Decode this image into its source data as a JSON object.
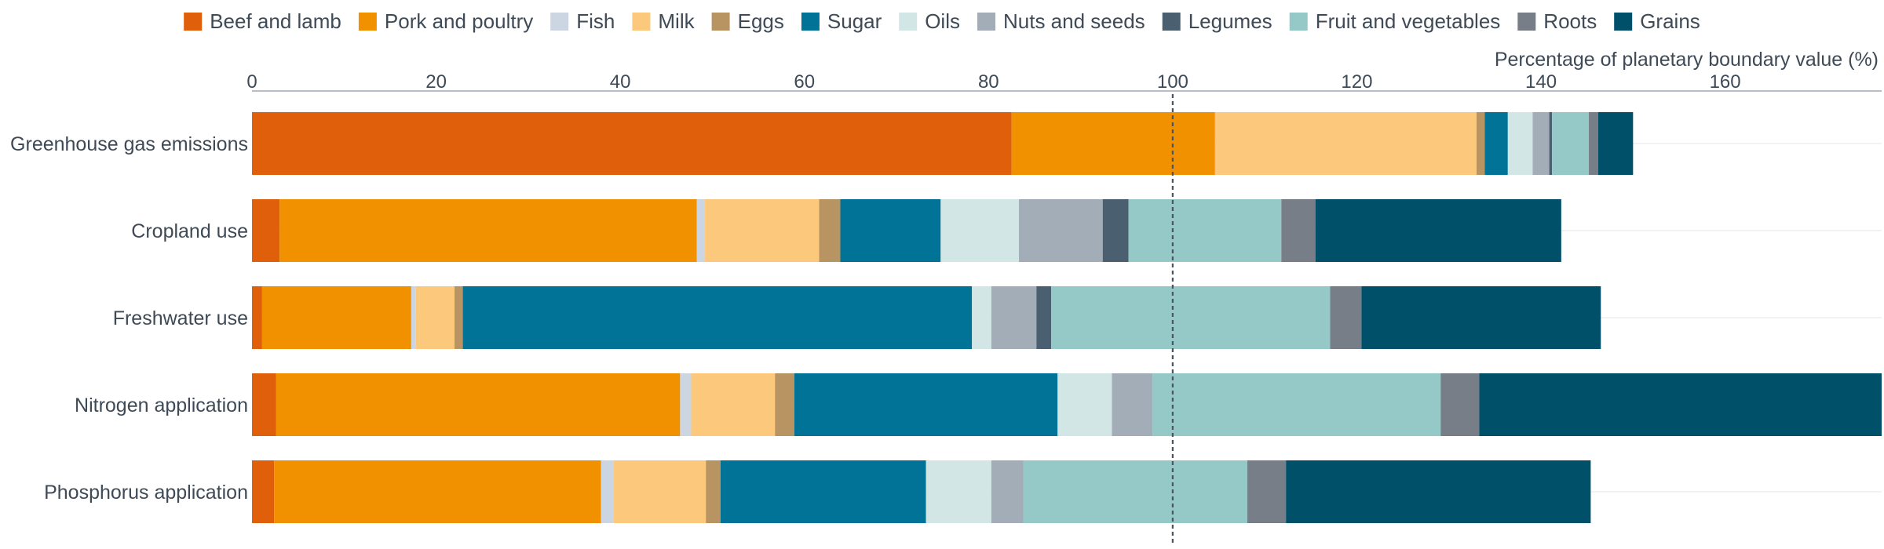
{
  "chart_data": {
    "type": "bar",
    "orientation": "horizontal",
    "stacked": true,
    "xlabel": "Percentage of planetary boundary value (%)",
    "xlim": [
      0,
      177
    ],
    "xticks": [
      0,
      20,
      40,
      60,
      80,
      100,
      120,
      140,
      160
    ],
    "reference_line": 100,
    "legend_position": "top",
    "categories": [
      "Greenhouse gas emissions",
      "Cropland use",
      "Freshwater use",
      "Nitrogen application",
      "Phosphorus application"
    ],
    "series": [
      {
        "name": "Beef and lamb",
        "color": "#df5f0a",
        "values": [
          82.5,
          3.0,
          1.1,
          2.6,
          2.4
        ]
      },
      {
        "name": "Pork and poultry",
        "color": "#f29100",
        "values": [
          22.1,
          45.3,
          16.2,
          43.9,
          35.5
        ]
      },
      {
        "name": "Fish",
        "color": "#cbd6e2",
        "values": [
          0.0,
          0.9,
          0.5,
          1.2,
          1.4
        ]
      },
      {
        "name": "Milk",
        "color": "#fbc87c",
        "values": [
          28.4,
          12.4,
          4.2,
          9.1,
          10.0
        ]
      },
      {
        "name": "Eggs",
        "color": "#b89463",
        "values": [
          0.9,
          2.3,
          0.9,
          2.1,
          1.6
        ]
      },
      {
        "name": "Sugar",
        "color": "#017397",
        "values": [
          2.5,
          10.9,
          55.3,
          28.6,
          22.3
        ]
      },
      {
        "name": "Oils",
        "color": "#d2e6e5",
        "values": [
          2.7,
          8.5,
          2.1,
          5.9,
          7.1
        ]
      },
      {
        "name": "Nuts and seeds",
        "color": "#a3adb8",
        "values": [
          1.8,
          9.1,
          4.9,
          4.4,
          3.5
        ]
      },
      {
        "name": "Legumes",
        "color": "#4a5f70",
        "values": [
          0.3,
          2.8,
          1.6,
          0.0,
          0.0
        ]
      },
      {
        "name": "Fruit and vegetables",
        "color": "#95c9c8",
        "values": [
          4.0,
          16.6,
          30.3,
          31.3,
          24.3
        ]
      },
      {
        "name": "Roots",
        "color": "#787e88",
        "values": [
          1.0,
          3.7,
          3.4,
          4.2,
          4.2
        ]
      },
      {
        "name": "Grains",
        "color": "#01506a",
        "values": [
          3.8,
          26.7,
          26.0,
          44.0,
          33.1
        ]
      }
    ]
  }
}
